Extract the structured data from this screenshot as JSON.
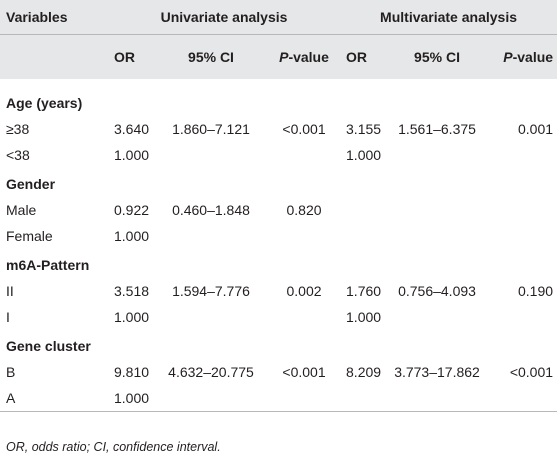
{
  "table": {
    "header": {
      "variables": "Variables",
      "univariate": "Univariate analysis",
      "multivariate": "Multivariate analysis",
      "or": "OR",
      "ci": "95% CI",
      "p_italic": "P",
      "p_rest": "-value"
    },
    "groups": [
      {
        "name": "Age (years)",
        "rows": [
          {
            "label": "≥38",
            "or1": "3.640",
            "ci1": "1.860–7.121",
            "p1": "<0.001",
            "or2": "3.155",
            "ci2": "1.561–6.375",
            "p2": "0.001"
          },
          {
            "label": "<38",
            "or1": "1.000",
            "ci1": "",
            "p1": "",
            "or2": "1.000",
            "ci2": "",
            "p2": ""
          }
        ]
      },
      {
        "name": "Gender",
        "rows": [
          {
            "label": "Male",
            "or1": "0.922",
            "ci1": "0.460–1.848",
            "p1": "0.820",
            "or2": "",
            "ci2": "",
            "p2": ""
          },
          {
            "label": "Female",
            "or1": "1.000",
            "ci1": "",
            "p1": "",
            "or2": "",
            "ci2": "",
            "p2": ""
          }
        ]
      },
      {
        "name": "m6A-Pattern",
        "rows": [
          {
            "label": "II",
            "or1": "3.518",
            "ci1": "1.594–7.776",
            "p1": "0.002",
            "or2": "1.760",
            "ci2": "0.756–4.093",
            "p2": "0.190"
          },
          {
            "label": "I",
            "or1": "1.000",
            "ci1": "",
            "p1": "",
            "or2": "1.000",
            "ci2": "",
            "p2": ""
          }
        ]
      },
      {
        "name": "Gene cluster",
        "rows": [
          {
            "label": "B",
            "or1": "9.810",
            "ci1": "4.632–20.775",
            "p1": "<0.001",
            "or2": "8.209",
            "ci2": "3.773–17.862",
            "p2": "<0.001"
          },
          {
            "label": "A",
            "or1": "1.000",
            "ci1": "",
            "p1": "",
            "or2": "",
            "ci2": "",
            "p2": ""
          }
        ]
      }
    ],
    "footnote": "OR, odds ratio; CI, confidence interval."
  },
  "colors": {
    "header_bg": "#e6e7e8",
    "rule": "#b7b8ba",
    "text": "#231f20"
  }
}
